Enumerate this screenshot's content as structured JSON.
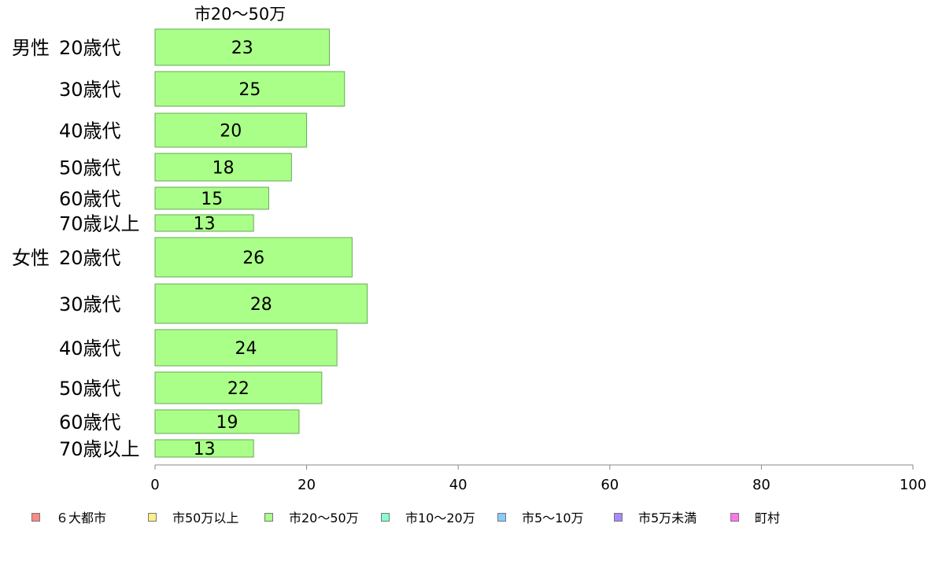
{
  "chart_data": {
    "type": "bar",
    "orientation": "horizontal",
    "title": "市20〜50万",
    "groups": [
      {
        "label": "男性",
        "categories": [
          "20歳代",
          "30歳代",
          "40歳代",
          "50歳代",
          "60歳代",
          "70歳以上"
        ],
        "values": [
          23,
          25,
          20,
          18,
          15,
          13
        ]
      },
      {
        "label": "女性",
        "categories": [
          "20歳代",
          "30歳代",
          "40歳代",
          "50歳代",
          "60歳代",
          "70歳以上"
        ],
        "values": [
          26,
          28,
          24,
          22,
          19,
          13
        ]
      }
    ],
    "xlim": [
      0,
      100
    ],
    "xticks": [
      0,
      20,
      40,
      60,
      80,
      100
    ],
    "bar_color": "#aaff88",
    "bar_stroke": "#66aa55",
    "legend_position": "bottom",
    "legend": [
      {
        "name": "６大都市",
        "color": "#ff8888"
      },
      {
        "name": "市50万以上",
        "color": "#ffee88"
      },
      {
        "name": "市20〜50万",
        "color": "#aaff88"
      },
      {
        "name": "市10〜20万",
        "color": "#88ffcc"
      },
      {
        "name": "市5〜10万",
        "color": "#88ccff"
      },
      {
        "name": "市5万未満",
        "color": "#aa88ff"
      },
      {
        "name": "町村",
        "color": "#ff77ee"
      }
    ]
  }
}
